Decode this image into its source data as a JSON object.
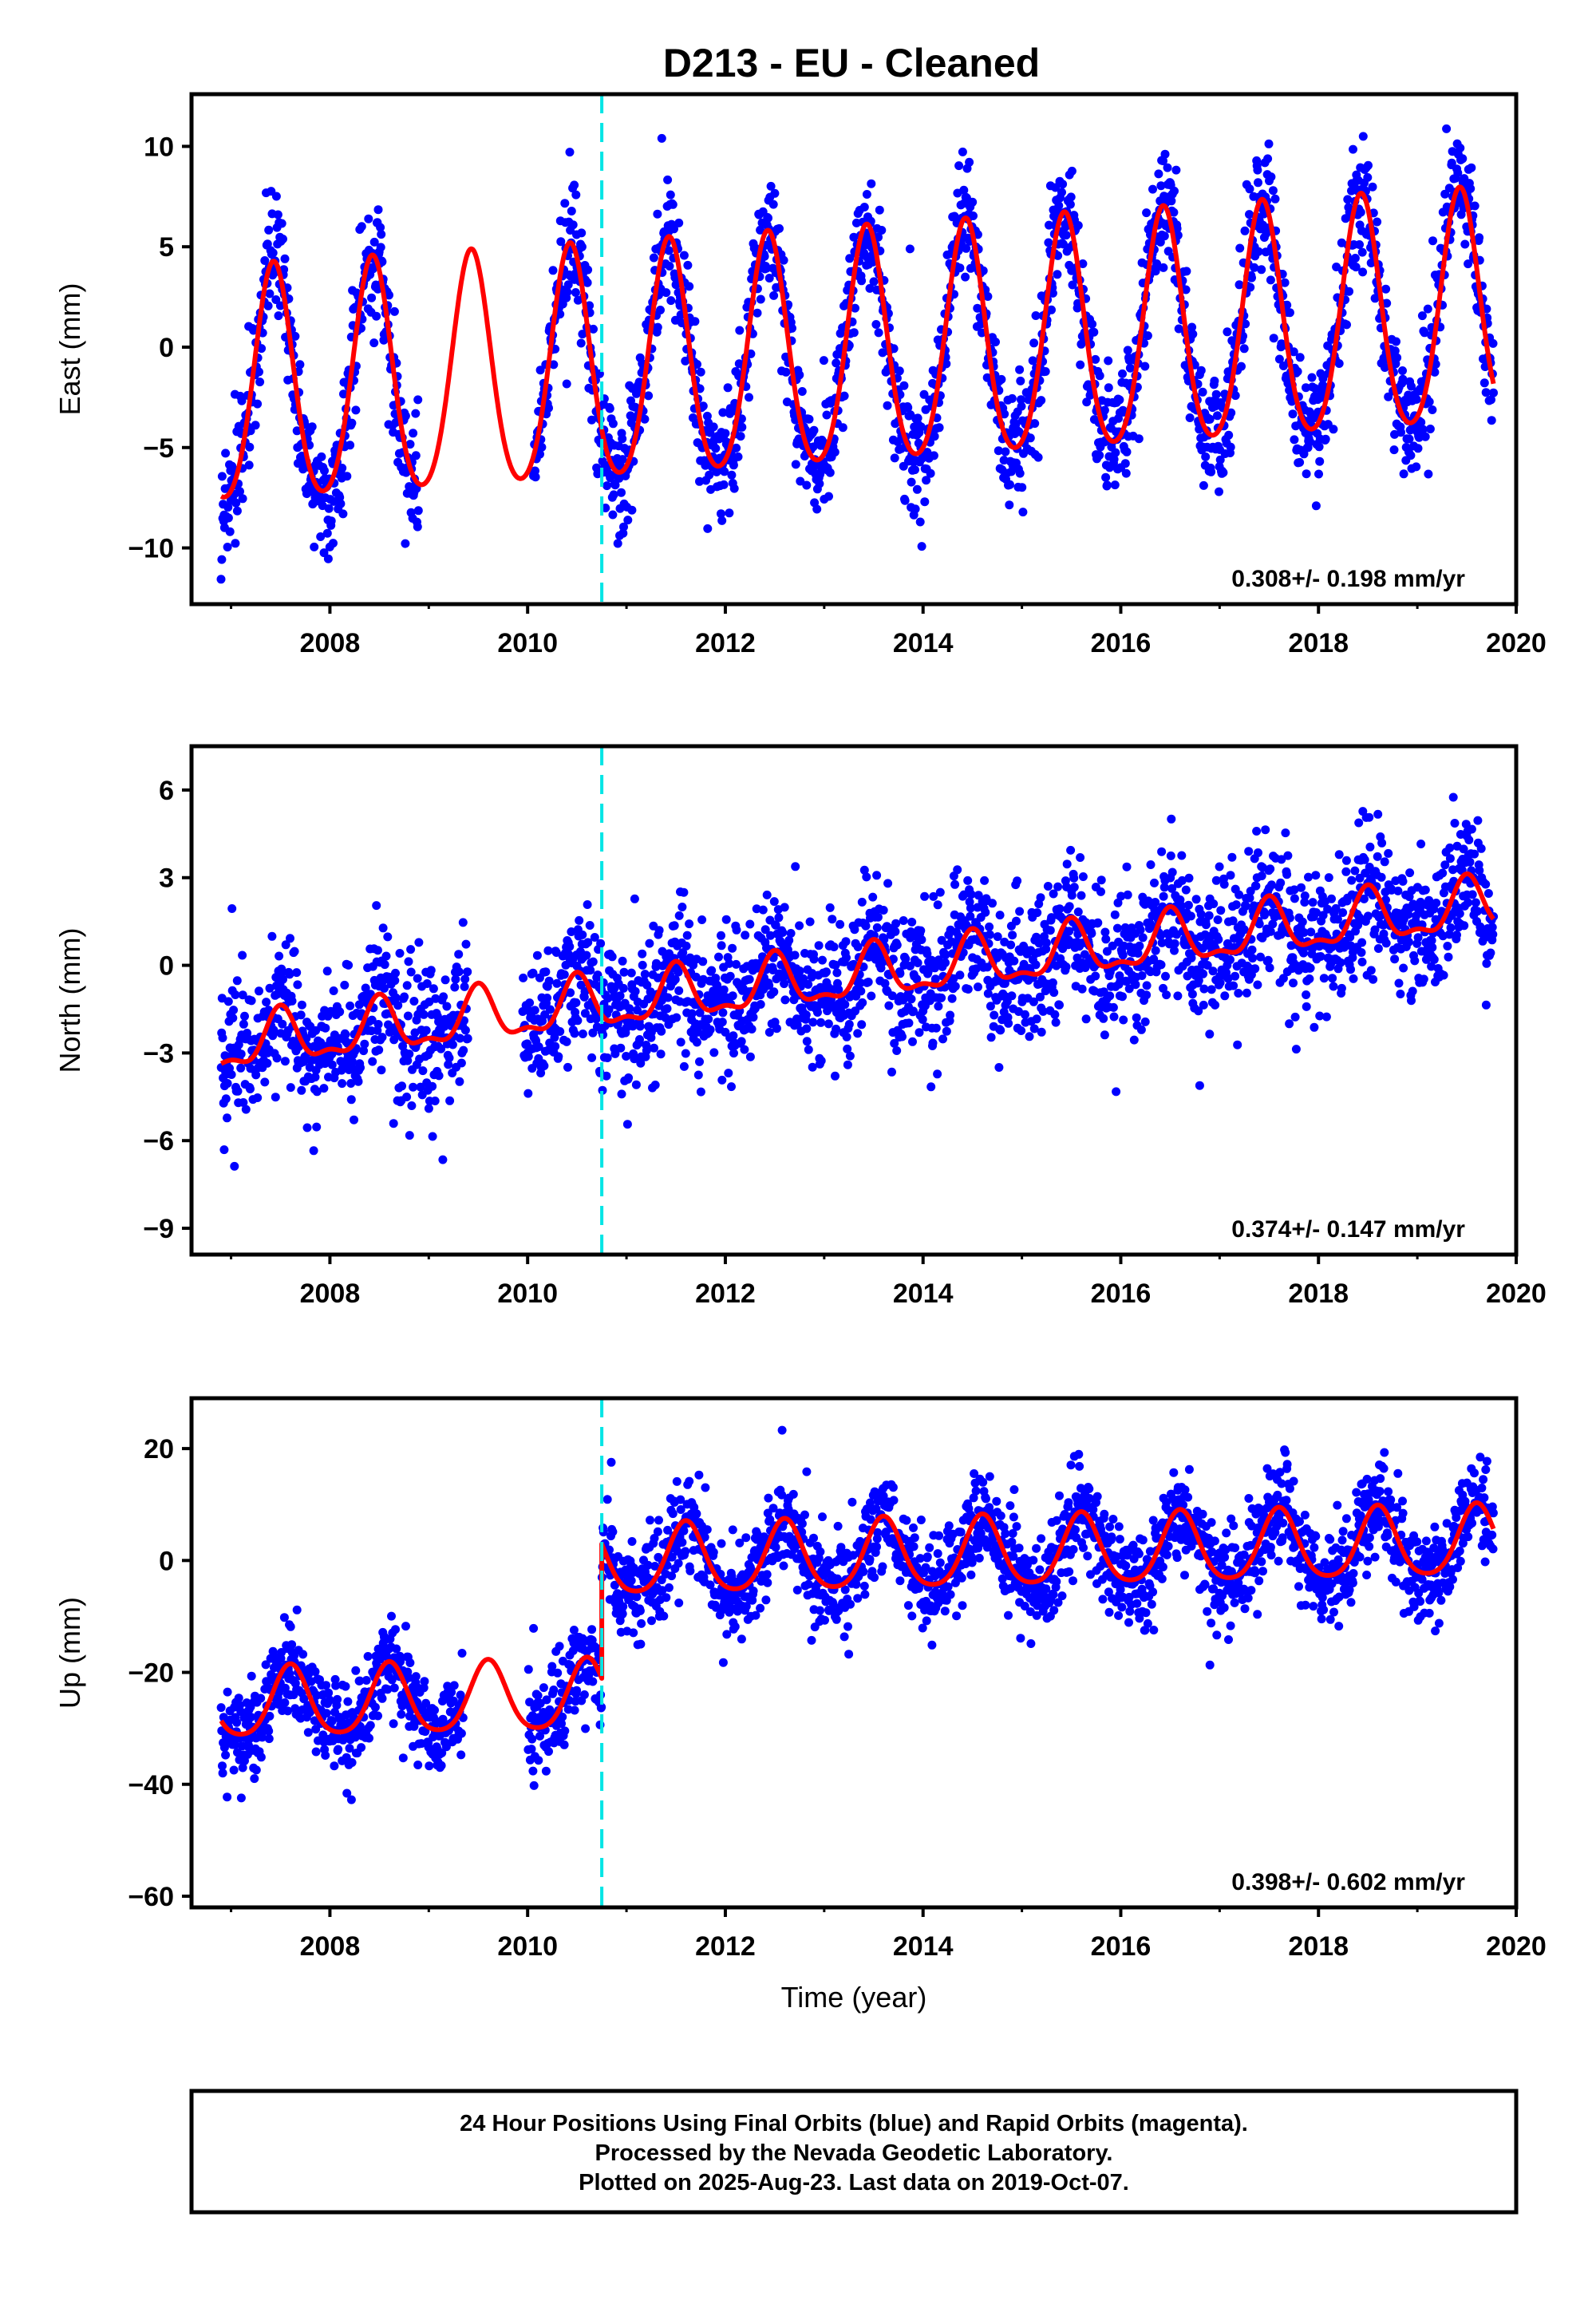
{
  "title": "D213  - EU - Cleaned",
  "xlabel": "Time (year)",
  "footer": [
    "24 Hour Positions Using Final Orbits (blue) and Rapid Orbits (magenta).",
    "Processed by the Nevada Geodetic Laboratory.",
    "Plotted on 2025-Aug-23. Last data on 2019-Oct-07."
  ],
  "colors": {
    "observations": "#0000ff",
    "model": "#ff0000",
    "equipment_change": "#00e5e5",
    "frame": "#000000"
  },
  "chart_data": [
    {
      "type": "scatter",
      "component": "East",
      "ylabel": "East (mm)",
      "xlim": [
        2006.6,
        2020.0
      ],
      "ylim": [
        -12.8,
        12.6
      ],
      "xticks": [
        2008,
        2010,
        2012,
        2014,
        2016,
        2018,
        2020
      ],
      "yticks": [
        -10,
        -5,
        0,
        5,
        10
      ],
      "rate_label": "0.308+/- 0.198 mm/yr",
      "rate_mm_per_yr": 0.308,
      "rate_sigma": 0.198,
      "data_span": [
        2006.9,
        2019.77
      ],
      "gap": [
        2008.9,
        2010.05
      ],
      "offset_epoch": 2010.75,
      "offset_mm": 0.0,
      "model": {
        "intercept_2013": -0.5,
        "annual_amplitude": 5.8,
        "annual_peak_phase": 0.43,
        "semiannual_amplitude": 0.7
      },
      "scatter_sigma": 1.5,
      "n_points": 2600,
      "grid": false,
      "legend": "none"
    },
    {
      "type": "scatter",
      "component": "North",
      "ylabel": "North (mm)",
      "xlim": [
        2006.6,
        2020.0
      ],
      "ylim": [
        -9.9,
        7.5
      ],
      "xticks": [
        2008,
        2010,
        2012,
        2014,
        2016,
        2018,
        2020
      ],
      "yticks": [
        -9,
        -6,
        -3,
        0,
        3,
        6
      ],
      "rate_label": "0.374+/- 0.147 mm/yr",
      "rate_mm_per_yr": 0.374,
      "rate_sigma": 0.147,
      "data_span": [
        2006.9,
        2019.77
      ],
      "gap": [
        2009.4,
        2009.95
      ],
      "offset_epoch": 2010.75,
      "offset_mm": 0.0,
      "model": {
        "intercept_2013": -0.5,
        "annual_amplitude": 0.85,
        "annual_peak_phase": 0.5,
        "semiannual_amplitude": 0.35
      },
      "scatter_sigma": 1.2,
      "n_points": 2600,
      "grid": false,
      "legend": "none"
    },
    {
      "type": "scatter",
      "component": "Up",
      "ylabel": "Up (mm)",
      "xlim": [
        2006.6,
        2020.0
      ],
      "ylim": [
        -62,
        29
      ],
      "xticks": [
        2008,
        2010,
        2012,
        2014,
        2016,
        2018,
        2020
      ],
      "yticks": [
        -60,
        -40,
        -20,
        0,
        20
      ],
      "rate_label": "0.398+/- 0.602 mm/yr",
      "rate_mm_per_yr": 0.398,
      "rate_sigma": 0.602,
      "data_span": [
        2006.9,
        2019.77
      ],
      "gap": [
        2009.35,
        2010.0
      ],
      "offset_epoch": 2010.75,
      "offset_mm": 24.0,
      "model": {
        "intercept_2013": 0.5,
        "annual_amplitude": 6.2,
        "annual_peak_phase": 0.6,
        "semiannual_amplitude": 1.0
      },
      "scatter_sigma": 4.2,
      "n_points": 2600,
      "grid": false,
      "legend": "none"
    }
  ]
}
